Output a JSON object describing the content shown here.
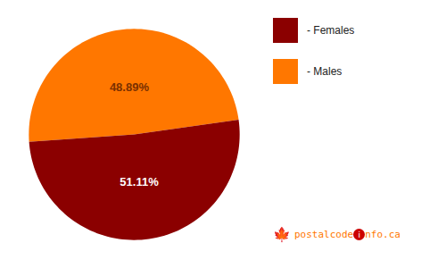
{
  "chart_data": {
    "type": "pie",
    "categories": [
      "- Males",
      "- Females"
    ],
    "values": [
      48.89,
      51.11
    ],
    "value_labels": [
      "48.89%",
      "51.11%"
    ],
    "colors": [
      "#FF7700",
      "#8B0000"
    ],
    "data_labels": true,
    "value_label_colors": [
      "#7A3000",
      "#FFFFFF"
    ],
    "legend": "right",
    "background_color": "#FFFFFF",
    "annotations": [
      {
        "text": "🍁",
        "color": "#8B0000"
      },
      {
        "text": "postalcode",
        "color": "#FF7700"
      },
      {
        "text": "i",
        "color": "#FFFFFF",
        "background": "#CC0000"
      },
      {
        "text": "nfo.ca",
        "color": "#FF7700"
      }
    ]
  }
}
